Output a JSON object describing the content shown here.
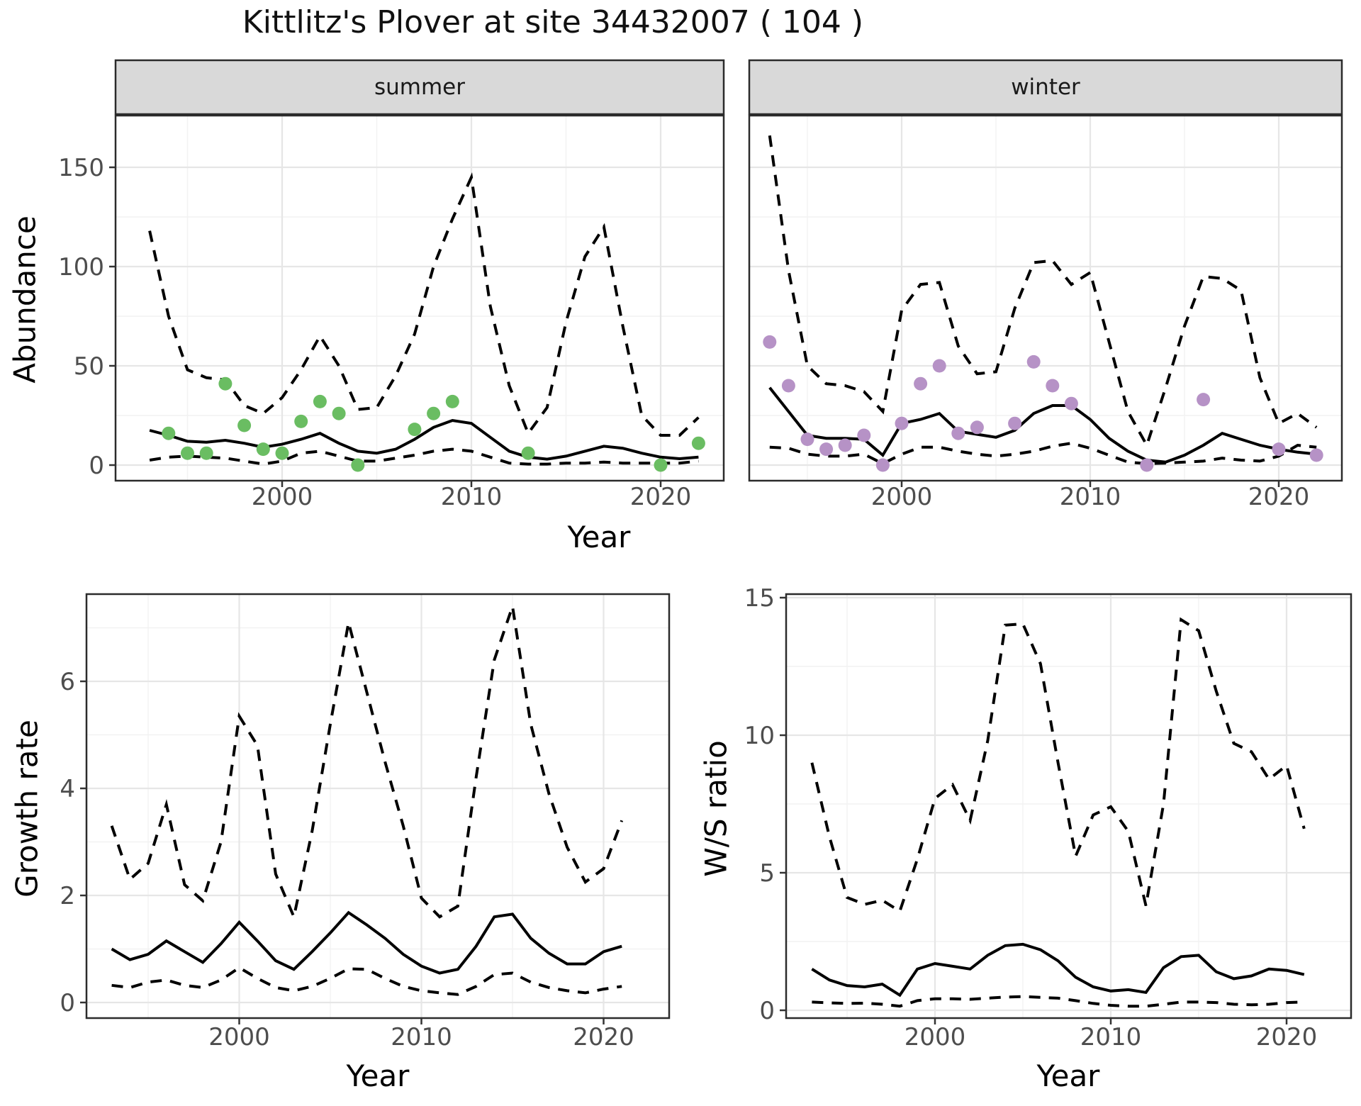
{
  "title": "Kittlitz's Plover at site 34432007 ( 104 )",
  "colors": {
    "summer_point": "#6abd62",
    "winter_point": "#b692c6",
    "line": "#000000",
    "panel_border": "#2b2b2b",
    "strip_bg": "#d9d9d9",
    "grid_major": "#e6e6e6",
    "grid_minor": "#f2f2f2",
    "axis_text": "#4d4d4d",
    "tick_mark": "#333333"
  },
  "chart_data": [
    {
      "id": "abundance_summer",
      "type": "line",
      "facet": "summer",
      "xlabel": "Year",
      "ylabel": "Abundance",
      "x_ticks": [
        2000,
        2010,
        2020
      ],
      "x_minor": [
        1995,
        2005,
        2015
      ],
      "y_ticks": [
        0,
        50,
        100,
        150
      ],
      "y_minor": [
        25,
        75,
        125
      ],
      "xlim": [
        1991.2,
        2023.3
      ],
      "ylim": [
        -8,
        176
      ],
      "grid": true,
      "legend": "none",
      "years": [
        1993,
        1994,
        1995,
        1996,
        1997,
        1998,
        1999,
        2000,
        2001,
        2002,
        2003,
        2004,
        2005,
        2006,
        2007,
        2008,
        2009,
        2010,
        2011,
        2012,
        2013,
        2014,
        2015,
        2016,
        2017,
        2018,
        2019,
        2020,
        2021,
        2022
      ],
      "series": [
        {
          "name": "mean",
          "style": "solid",
          "values": [
            17.5,
            15,
            12,
            11.5,
            12.5,
            11,
            9,
            10.5,
            13,
            16,
            11,
            7,
            6,
            8,
            13,
            19,
            22.5,
            21,
            14,
            7,
            4,
            3,
            4.5,
            7,
            9.5,
            8.5,
            6,
            4,
            3.2,
            4
          ]
        },
        {
          "name": "upper_ci",
          "style": "dashed",
          "values": [
            118,
            75,
            48,
            44,
            43,
            30,
            26,
            34,
            48,
            65,
            50,
            28,
            29,
            45,
            66,
            100,
            124,
            145,
            80,
            40,
            16,
            29,
            72,
            105,
            120,
            70,
            25,
            15,
            15,
            24
          ]
        },
        {
          "name": "lower_ci",
          "style": "dashed",
          "values": [
            2.5,
            4,
            4.5,
            4,
            3.5,
            2,
            0.5,
            2,
            6,
            7,
            4.5,
            2,
            2,
            3.5,
            5,
            7,
            8,
            7,
            4,
            1,
            0.5,
            0.5,
            1,
            1,
            1.5,
            1,
            1,
            1,
            1,
            2
          ]
        }
      ],
      "points": {
        "name": "observed_counts",
        "color": "#6abd62",
        "values": [
          [
            1994,
            16
          ],
          [
            1995,
            6
          ],
          [
            1996,
            6
          ],
          [
            1997,
            41
          ],
          [
            1998,
            20
          ],
          [
            1999,
            8
          ],
          [
            2000,
            6
          ],
          [
            2001,
            22
          ],
          [
            2002,
            32
          ],
          [
            2003,
            26
          ],
          [
            2004,
            0
          ],
          [
            2007,
            18
          ],
          [
            2008,
            26
          ],
          [
            2009,
            32
          ],
          [
            2013,
            6
          ],
          [
            2020,
            0
          ],
          [
            2022,
            11
          ]
        ]
      }
    },
    {
      "id": "abundance_winter",
      "type": "line",
      "facet": "winter",
      "xlabel": "Year",
      "ylabel": "Abundance",
      "x_ticks": [
        2000,
        2010,
        2020
      ],
      "x_minor": [
        1995,
        2005,
        2015
      ],
      "y_ticks": [
        0,
        50,
        100,
        150
      ],
      "y_minor": [
        25,
        75,
        125
      ],
      "xlim": [
        1991.2,
        2023.3
      ],
      "ylim": [
        -8,
        176
      ],
      "grid": true,
      "legend": "none",
      "years": [
        1993,
        1994,
        1995,
        1996,
        1997,
        1998,
        1999,
        2000,
        2001,
        2002,
        2003,
        2004,
        2005,
        2006,
        2007,
        2008,
        2009,
        2010,
        2011,
        2012,
        2013,
        2014,
        2015,
        2016,
        2017,
        2018,
        2019,
        2020,
        2021,
        2022
      ],
      "series": [
        {
          "name": "mean",
          "style": "solid",
          "values": [
            39,
            27,
            15,
            13.5,
            13.5,
            13,
            5,
            21,
            23,
            26,
            17,
            15.5,
            14,
            17.5,
            26,
            30,
            30,
            23,
            13.5,
            7,
            2.5,
            1.5,
            5,
            10,
            16,
            13,
            10,
            8,
            6.5,
            5.5
          ]
        },
        {
          "name": "upper_ci",
          "style": "dashed",
          "values": [
            166,
            98,
            50,
            41,
            40,
            37,
            27,
            78,
            91,
            92,
            60,
            46,
            47,
            79,
            102,
            103,
            91,
            97,
            62,
            27,
            10,
            39,
            70,
            95,
            94,
            88,
            44,
            21,
            26,
            19
          ]
        },
        {
          "name": "lower_ci",
          "style": "dashed",
          "values": [
            9,
            8.5,
            5.5,
            4.5,
            4.5,
            5.5,
            0.7,
            5.5,
            9,
            9,
            7,
            5.5,
            4.5,
            5.5,
            7,
            9.5,
            11,
            8.5,
            5,
            1.5,
            0.7,
            1,
            1.5,
            2,
            3.5,
            2.5,
            2,
            4.5,
            10,
            9
          ]
        }
      ],
      "points": {
        "name": "observed_counts",
        "color": "#b692c6",
        "values": [
          [
            1993,
            62
          ],
          [
            1994,
            40
          ],
          [
            1995,
            13
          ],
          [
            1996,
            8
          ],
          [
            1997,
            10
          ],
          [
            1998,
            15
          ],
          [
            1999,
            0
          ],
          [
            2000,
            21
          ],
          [
            2001,
            41
          ],
          [
            2002,
            50
          ],
          [
            2003,
            16
          ],
          [
            2004,
            19
          ],
          [
            2006,
            21
          ],
          [
            2007,
            52
          ],
          [
            2008,
            40
          ],
          [
            2009,
            31
          ],
          [
            2013,
            0
          ],
          [
            2016,
            33
          ],
          [
            2020,
            8
          ],
          [
            2022,
            5
          ]
        ]
      }
    },
    {
      "id": "growth_rate",
      "type": "line",
      "facet": null,
      "xlabel": "Year",
      "ylabel": "Growth rate",
      "x_ticks": [
        2000,
        2010,
        2020
      ],
      "x_minor": [
        1995,
        2005,
        2015
      ],
      "y_ticks": [
        0,
        2,
        4,
        6
      ],
      "y_minor": [
        1,
        3,
        5,
        7
      ],
      "xlim": [
        1991.6,
        2023.6
      ],
      "ylim": [
        -0.3,
        7.6
      ],
      "grid": true,
      "legend": "none",
      "years": [
        1993,
        1994,
        1995,
        1996,
        1997,
        1998,
        1999,
        2000,
        2001,
        2002,
        2003,
        2004,
        2005,
        2006,
        2007,
        2008,
        2009,
        2010,
        2011,
        2012,
        2013,
        2014,
        2015,
        2016,
        2017,
        2018,
        2019,
        2020,
        2021
      ],
      "series": [
        {
          "name": "mean",
          "style": "solid",
          "values": [
            1.0,
            0.8,
            0.9,
            1.15,
            0.95,
            0.75,
            1.1,
            1.5,
            1.15,
            0.78,
            0.62,
            0.95,
            1.3,
            1.68,
            1.45,
            1.2,
            0.9,
            0.68,
            0.55,
            0.62,
            1.05,
            1.6,
            1.65,
            1.2,
            0.92,
            0.72,
            0.72,
            0.95,
            1.05
          ]
        },
        {
          "name": "upper_ci",
          "style": "dashed",
          "values": [
            3.3,
            2.3,
            2.6,
            3.7,
            2.2,
            1.9,
            3.0,
            5.35,
            4.8,
            2.4,
            1.6,
            3.2,
            5.2,
            7.1,
            5.8,
            4.5,
            3.3,
            1.95,
            1.6,
            1.8,
            4.2,
            6.4,
            7.4,
            5.2,
            3.9,
            2.9,
            2.25,
            2.5,
            3.4
          ]
        },
        {
          "name": "lower_ci",
          "style": "dashed",
          "values": [
            0.32,
            0.28,
            0.38,
            0.42,
            0.32,
            0.28,
            0.42,
            0.65,
            0.45,
            0.28,
            0.22,
            0.3,
            0.45,
            0.63,
            0.62,
            0.45,
            0.3,
            0.22,
            0.18,
            0.15,
            0.3,
            0.52,
            0.55,
            0.38,
            0.28,
            0.22,
            0.18,
            0.25,
            0.3
          ]
        }
      ],
      "points": null
    },
    {
      "id": "ws_ratio",
      "type": "line",
      "facet": null,
      "xlabel": "Year",
      "ylabel": "W/S ratio",
      "x_ticks": [
        2000,
        2010,
        2020
      ],
      "x_minor": [
        1995,
        2005,
        2015
      ],
      "y_ticks": [
        0,
        5,
        10,
        15
      ],
      "y_minor": [
        2.5,
        7.5,
        12.5
      ],
      "xlim": [
        1991.5,
        2023.7
      ],
      "ylim": [
        -0.3,
        15.3
      ],
      "grid": true,
      "legend": "none",
      "years": [
        1993,
        1994,
        1995,
        1996,
        1997,
        1998,
        1999,
        2000,
        2001,
        2002,
        2003,
        2004,
        2005,
        2006,
        2007,
        2008,
        2009,
        2010,
        2011,
        2012,
        2013,
        2014,
        2015,
        2016,
        2017,
        2018,
        2019,
        2020,
        2021
      ],
      "series": [
        {
          "name": "mean",
          "style": "solid",
          "values": [
            1.5,
            1.1,
            0.9,
            0.85,
            0.95,
            0.55,
            1.5,
            1.7,
            1.6,
            1.5,
            2.0,
            2.35,
            2.4,
            2.2,
            1.8,
            1.2,
            0.85,
            0.7,
            0.75,
            0.65,
            1.55,
            1.95,
            2.0,
            1.4,
            1.15,
            1.25,
            1.5,
            1.45,
            1.3
          ]
        },
        {
          "name": "upper_ci",
          "style": "dashed",
          "values": [
            9.0,
            6.3,
            4.1,
            3.85,
            4.0,
            3.6,
            5.5,
            7.7,
            8.2,
            6.9,
            9.8,
            14.0,
            14.05,
            12.6,
            9.0,
            5.6,
            7.1,
            7.4,
            6.5,
            3.8,
            7.5,
            14.2,
            13.8,
            11.6,
            9.7,
            9.4,
            8.4,
            8.9,
            6.6
          ]
        },
        {
          "name": "lower_ci",
          "style": "dashed",
          "values": [
            0.3,
            0.27,
            0.25,
            0.26,
            0.22,
            0.15,
            0.35,
            0.42,
            0.42,
            0.4,
            0.44,
            0.48,
            0.5,
            0.47,
            0.44,
            0.35,
            0.25,
            0.18,
            0.15,
            0.15,
            0.22,
            0.3,
            0.3,
            0.28,
            0.22,
            0.2,
            0.22,
            0.28,
            0.3
          ]
        }
      ],
      "points": null
    }
  ]
}
